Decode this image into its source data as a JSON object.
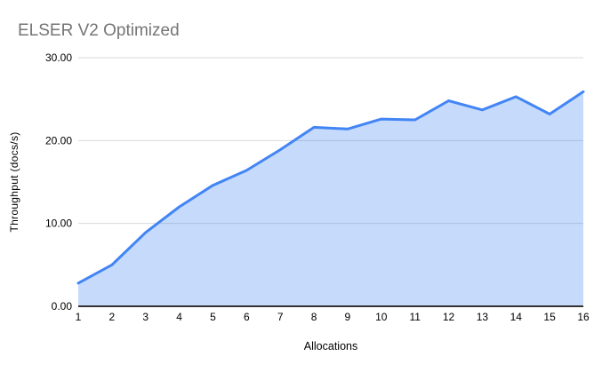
{
  "chart_data": {
    "type": "area",
    "title": "ELSER V2 Optimized",
    "xlabel": "Allocations",
    "ylabel": "Throughput (docs/s)",
    "categories": [
      "1",
      "2",
      "3",
      "4",
      "5",
      "6",
      "7",
      "8",
      "9",
      "10",
      "11",
      "12",
      "13",
      "14",
      "15",
      "16"
    ],
    "series": [
      {
        "name": "Throughput (docs/s)",
        "values": [
          2.8,
          5.0,
          8.9,
          12.0,
          14.6,
          16.4,
          18.9,
          21.6,
          21.4,
          22.6,
          22.5,
          24.8,
          23.7,
          25.3,
          23.2,
          25.9
        ]
      }
    ],
    "ylim": [
      0,
      30
    ],
    "y_ticks": [
      0,
      10,
      20,
      30
    ],
    "y_tick_labels": [
      "0.00",
      "10.00",
      "20.00",
      "30.00"
    ],
    "grid": true,
    "legend_position": "none",
    "colors": {
      "line": "#4285f4",
      "fill": "#4285f4",
      "fill_opacity": 0.3,
      "gridline": "#d9d9d9",
      "baseline": "#333333",
      "title_text": "#757575",
      "axis_text": "#000000",
      "background": "#ffffff"
    }
  }
}
